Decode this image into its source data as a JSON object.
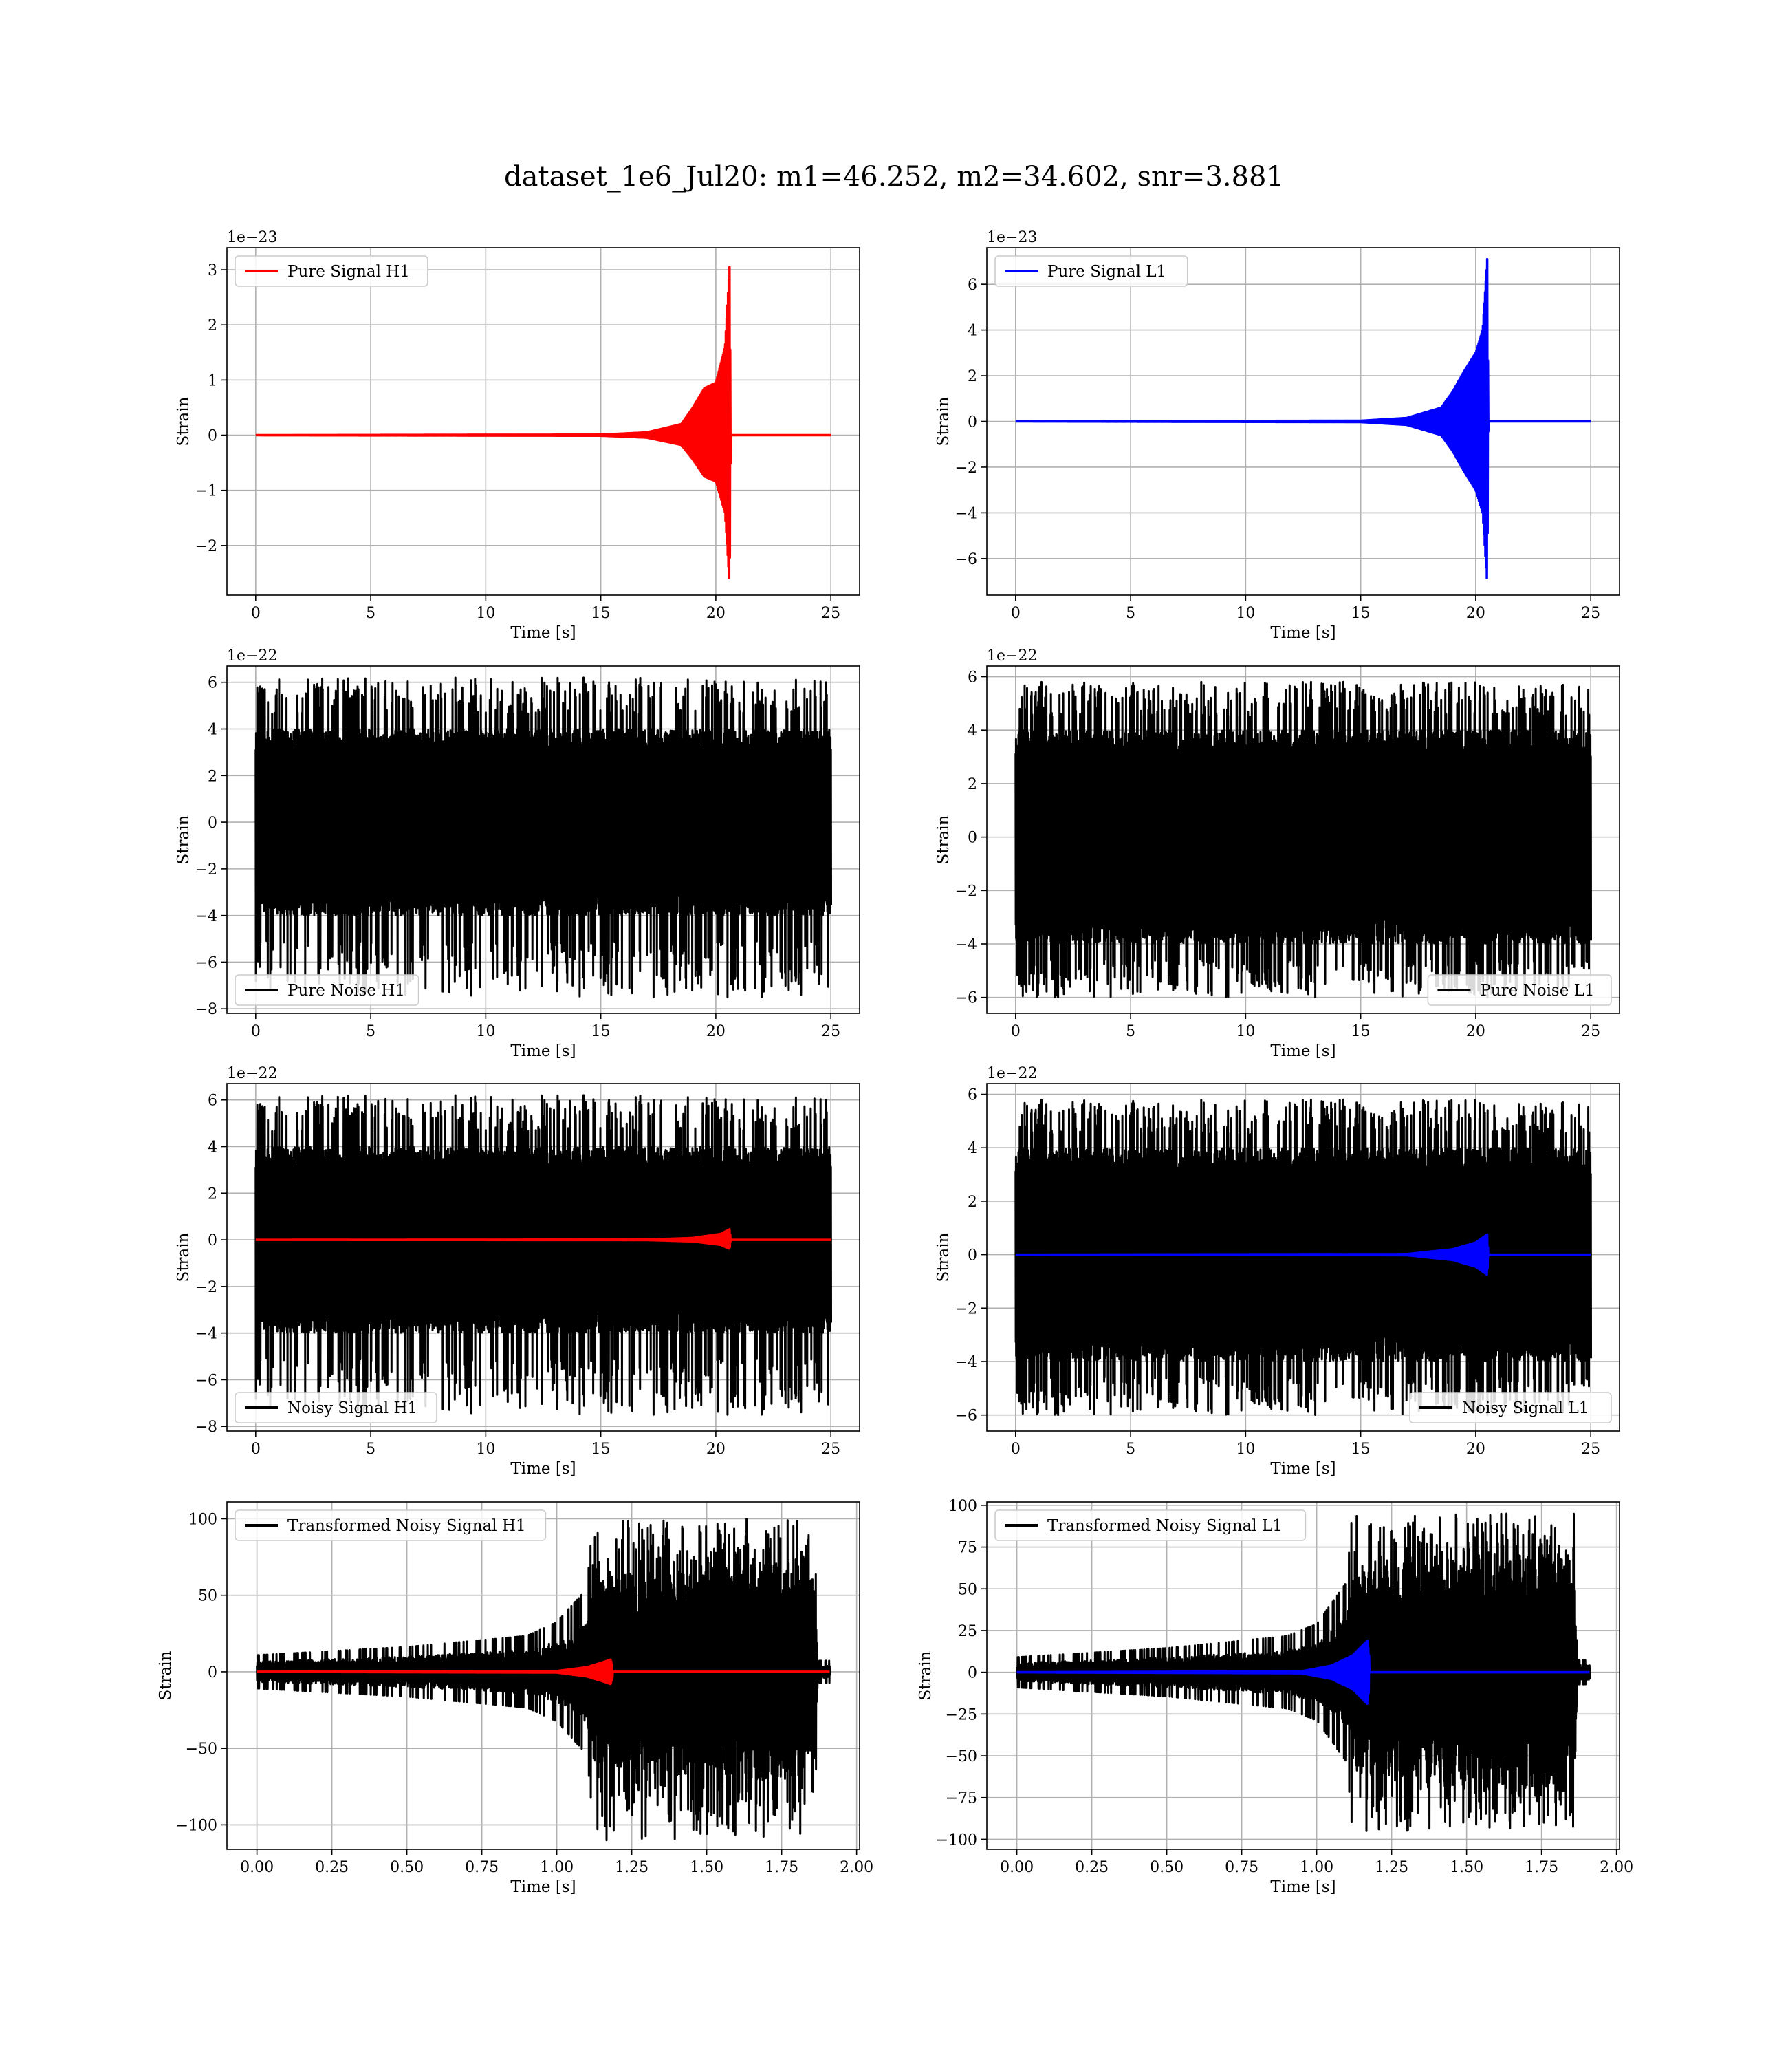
{
  "figure_title": "dataset_1e6_Jul20: m1=46.252, m2=34.602, snr=3.881",
  "colors": {
    "h1": "#ff0000",
    "l1": "#0000ff",
    "noise": "#000000",
    "grid": "#b0b0b0"
  },
  "chart_data": [
    {
      "type": "line",
      "id": "pure-signal-h1",
      "xlabel": "Time [s]",
      "ylabel": "Strain",
      "offset_text": "1e−23",
      "xlim": [
        -1.25,
        26.25
      ],
      "ylim": [
        -2.9,
        3.4
      ],
      "xticks": [
        0,
        5,
        10,
        15,
        20,
        25
      ],
      "xtick_labels": [
        "0",
        "5",
        "10",
        "15",
        "20",
        "25"
      ],
      "yticks": [
        -2,
        -1,
        0,
        1,
        2,
        3
      ],
      "ytick_labels": [
        "−2",
        "−1",
        "0",
        "1",
        "2",
        "3"
      ],
      "legend": {
        "loc": "upper left",
        "entries": [
          {
            "label": "Pure Signal H1",
            "color": "#ff0000"
          }
        ]
      },
      "series": [
        {
          "name": "Pure Signal H1",
          "kind": "chirp",
          "color": "#ff0000",
          "x_start": 0,
          "x_end": 25,
          "t_merge": 20.6,
          "envelope": [
            [
              0,
              0
            ],
            [
              15,
              0.01
            ],
            [
              17,
              0.05
            ],
            [
              18.5,
              0.2
            ],
            [
              19,
              0.5
            ],
            [
              19.5,
              0.85
            ],
            [
              20,
              0.95
            ],
            [
              20.4,
              1.6
            ],
            [
              20.6,
              3.1
            ],
            [
              20.65,
              0
            ]
          ],
          "neg_scale": 0.88
        }
      ]
    },
    {
      "type": "line",
      "id": "pure-signal-l1",
      "xlabel": "Time [s]",
      "ylabel": "Strain",
      "offset_text": "1e−23",
      "xlim": [
        -1.25,
        26.25
      ],
      "ylim": [
        -7.6,
        7.6
      ],
      "xticks": [
        0,
        5,
        10,
        15,
        20,
        25
      ],
      "xtick_labels": [
        "0",
        "5",
        "10",
        "15",
        "20",
        "25"
      ],
      "yticks": [
        -6,
        -4,
        -2,
        0,
        2,
        4,
        6
      ],
      "ytick_labels": [
        "−6",
        "−4",
        "−2",
        "0",
        "2",
        "4",
        "6"
      ],
      "legend": {
        "loc": "upper left",
        "entries": [
          {
            "label": "Pure Signal L1",
            "color": "#0000ff"
          }
        ]
      },
      "series": [
        {
          "name": "Pure Signal L1",
          "kind": "chirp",
          "color": "#0000ff",
          "x_start": 0,
          "x_end": 25,
          "t_merge": 20.5,
          "envelope": [
            [
              0,
              0
            ],
            [
              15,
              0.03
            ],
            [
              17,
              0.15
            ],
            [
              18.5,
              0.6
            ],
            [
              19,
              1.3
            ],
            [
              19.5,
              2.2
            ],
            [
              20,
              3.0
            ],
            [
              20.3,
              4.0
            ],
            [
              20.5,
              7.1
            ],
            [
              20.55,
              0
            ]
          ],
          "neg_scale": 1.0
        }
      ]
    },
    {
      "type": "line",
      "id": "pure-noise-h1",
      "xlabel": "Time [s]",
      "ylabel": "Strain",
      "offset_text": "1e−22",
      "xlim": [
        -1.25,
        26.25
      ],
      "ylim": [
        -8.2,
        6.7
      ],
      "xticks": [
        0,
        5,
        10,
        15,
        20,
        25
      ],
      "xtick_labels": [
        "0",
        "5",
        "10",
        "15",
        "20",
        "25"
      ],
      "yticks": [
        -8,
        -6,
        -4,
        -2,
        0,
        2,
        4,
        6
      ],
      "ytick_labels": [
        "−8",
        "−6",
        "−4",
        "−2",
        "0",
        "2",
        "4",
        "6"
      ],
      "legend": {
        "loc": "lower left",
        "entries": [
          {
            "label": "Pure Noise H1",
            "color": "#000000"
          }
        ]
      },
      "series": [
        {
          "name": "Pure Noise H1",
          "kind": "noise",
          "color": "#000000",
          "x_start": 0,
          "x_end": 25,
          "band": [
            -3.8,
            3.8
          ],
          "peak_max": 6.2,
          "peak_min": -7.5,
          "spikes": 260,
          "seed": 11
        }
      ]
    },
    {
      "type": "line",
      "id": "pure-noise-l1",
      "xlabel": "Time [s]",
      "ylabel": "Strain",
      "offset_text": "1e−22",
      "xlim": [
        -1.25,
        26.25
      ],
      "ylim": [
        -6.6,
        6.4
      ],
      "xticks": [
        0,
        5,
        10,
        15,
        20,
        25
      ],
      "xtick_labels": [
        "0",
        "5",
        "10",
        "15",
        "20",
        "25"
      ],
      "yticks": [
        -6,
        -4,
        -2,
        0,
        2,
        4,
        6
      ],
      "ytick_labels": [
        "−6",
        "−4",
        "−2",
        "0",
        "2",
        "4",
        "6"
      ],
      "legend": {
        "loc": "lower right",
        "entries": [
          {
            "label": "Pure Noise L1",
            "color": "#000000"
          }
        ]
      },
      "series": [
        {
          "name": "Pure Noise L1",
          "kind": "noise",
          "color": "#000000",
          "x_start": 0,
          "x_end": 25,
          "band": [
            -3.8,
            3.8
          ],
          "peak_max": 5.8,
          "peak_min": -6.0,
          "spikes": 260,
          "seed": 23
        }
      ]
    },
    {
      "type": "line",
      "id": "noisy-signal-h1",
      "xlabel": "Time [s]",
      "ylabel": "Strain",
      "offset_text": "1e−22",
      "xlim": [
        -1.25,
        26.25
      ],
      "ylim": [
        -8.2,
        6.7
      ],
      "xticks": [
        0,
        5,
        10,
        15,
        20,
        25
      ],
      "xtick_labels": [
        "0",
        "5",
        "10",
        "15",
        "20",
        "25"
      ],
      "yticks": [
        -8,
        -6,
        -4,
        -2,
        0,
        2,
        4,
        6
      ],
      "ytick_labels": [
        "−8",
        "−6",
        "−4",
        "−2",
        "0",
        "2",
        "4",
        "6"
      ],
      "legend": {
        "loc": "lower left",
        "entries": [
          {
            "label": "Noisy Signal H1",
            "color": "#000000"
          }
        ]
      },
      "series": [
        {
          "name": "Noisy Signal H1",
          "kind": "noise",
          "color": "#000000",
          "x_start": 0,
          "x_end": 25,
          "band": [
            -3.8,
            3.8
          ],
          "peak_max": 6.2,
          "peak_min": -7.5,
          "spikes": 260,
          "seed": 11
        },
        {
          "name": "Pure Signal H1",
          "kind": "chirp",
          "color": "#ff0000",
          "x_start": 0,
          "x_end": 25,
          "t_merge": 20.6,
          "envelope": [
            [
              0,
              0
            ],
            [
              17,
              0.01
            ],
            [
              19,
              0.08
            ],
            [
              20.2,
              0.25
            ],
            [
              20.6,
              0.45
            ],
            [
              20.65,
              0
            ]
          ],
          "neg_scale": 0.85
        }
      ]
    },
    {
      "type": "line",
      "id": "noisy-signal-l1",
      "xlabel": "Time [s]",
      "ylabel": "Strain",
      "offset_text": "1e−22",
      "xlim": [
        -1.25,
        26.25
      ],
      "ylim": [
        -6.6,
        6.4
      ],
      "xticks": [
        0,
        5,
        10,
        15,
        20,
        25
      ],
      "xtick_labels": [
        "0",
        "5",
        "10",
        "15",
        "20",
        "25"
      ],
      "yticks": [
        -6,
        -4,
        -2,
        0,
        2,
        4,
        6
      ],
      "ytick_labels": [
        "−6",
        "−4",
        "−2",
        "0",
        "2",
        "4",
        "6"
      ],
      "legend": {
        "loc": "lower right",
        "entries": [
          {
            "label": "Noisy Signal L1",
            "color": "#000000"
          }
        ]
      },
      "series": [
        {
          "name": "Noisy Signal L1",
          "kind": "noise",
          "color": "#000000",
          "x_start": 0,
          "x_end": 25,
          "band": [
            -3.8,
            3.8
          ],
          "peak_max": 5.8,
          "peak_min": -6.0,
          "spikes": 260,
          "seed": 23
        },
        {
          "name": "Pure Signal L1",
          "kind": "chirp",
          "color": "#0000ff",
          "x_start": 0,
          "x_end": 25,
          "t_merge": 20.5,
          "envelope": [
            [
              0,
              0
            ],
            [
              17,
              0.02
            ],
            [
              19,
              0.2
            ],
            [
              20,
              0.45
            ],
            [
              20.5,
              0.75
            ],
            [
              20.55,
              0
            ]
          ],
          "neg_scale": 1.0
        }
      ]
    },
    {
      "type": "line",
      "id": "transformed-noisy-signal-h1",
      "xlabel": "Time [s]",
      "ylabel": "Strain",
      "offset_text": "",
      "xlim": [
        -0.1,
        2.01
      ],
      "ylim": [
        -116,
        111
      ],
      "xticks": [
        0.0,
        0.25,
        0.5,
        0.75,
        1.0,
        1.25,
        1.5,
        1.75,
        2.0
      ],
      "xtick_labels": [
        "0.00",
        "0.25",
        "0.50",
        "0.75",
        "1.00",
        "1.25",
        "1.50",
        "1.75",
        "2.00"
      ],
      "yticks": [
        -100,
        -50,
        0,
        50,
        100
      ],
      "ytick_labels": [
        "−100",
        "−50",
        "0",
        "50",
        "100"
      ],
      "legend": {
        "loc": "upper left",
        "entries": [
          {
            "label": "Transformed Noisy Signal H1",
            "color": "#000000"
          }
        ]
      },
      "series": [
        {
          "name": "Transformed Noisy Signal H1",
          "kind": "tnoise",
          "color": "#000000",
          "x_start": 0,
          "x_end": 1.91,
          "env": [
            [
              0,
              6
            ],
            [
              0.5,
              9
            ],
            [
              0.9,
              13
            ],
            [
              1.0,
              18
            ],
            [
              1.1,
              30
            ],
            [
              1.12,
              55
            ],
            [
              1.3,
              60
            ],
            [
              1.6,
              65
            ],
            [
              1.8,
              65
            ],
            [
              1.86,
              55
            ],
            [
              1.87,
              4
            ],
            [
              1.91,
              4
            ]
          ],
          "peak_max": 100,
          "peak_min": -110,
          "spikes": 220,
          "seed": 5
        },
        {
          "name": "Pure Signal H1",
          "kind": "chirp",
          "color": "#ff0000",
          "x_start": 0,
          "x_end": 1.91,
          "t_merge": 1.18,
          "envelope": [
            [
              0,
              0
            ],
            [
              1.0,
              0.5
            ],
            [
              1.1,
              3
            ],
            [
              1.15,
              6
            ],
            [
              1.18,
              8
            ],
            [
              1.19,
              0
            ]
          ],
          "neg_scale": 1.0
        }
      ]
    },
    {
      "type": "line",
      "id": "transformed-noisy-signal-l1",
      "xlabel": "Time [s]",
      "ylabel": "Strain",
      "offset_text": "",
      "xlim": [
        -0.1,
        2.01
      ],
      "ylim": [
        -106,
        102
      ],
      "xticks": [
        0.0,
        0.25,
        0.5,
        0.75,
        1.0,
        1.25,
        1.5,
        1.75,
        2.0
      ],
      "xtick_labels": [
        "0.00",
        "0.25",
        "0.50",
        "0.75",
        "1.00",
        "1.25",
        "1.50",
        "1.75",
        "2.00"
      ],
      "yticks": [
        -100,
        -75,
        -50,
        -25,
        0,
        25,
        50,
        75,
        100
      ],
      "ytick_labels": [
        "−100",
        "−75",
        "−50",
        "−25",
        "0",
        "25",
        "50",
        "75",
        "100"
      ],
      "legend": {
        "loc": "upper left",
        "entries": [
          {
            "label": "Transformed Noisy Signal L1",
            "color": "#000000"
          }
        ]
      },
      "series": [
        {
          "name": "Transformed Noisy Signal L1",
          "kind": "tnoise",
          "color": "#000000",
          "x_start": 0,
          "x_end": 1.91,
          "env": [
            [
              0,
              5
            ],
            [
              0.5,
              8
            ],
            [
              0.9,
              12
            ],
            [
              1.0,
              16
            ],
            [
              1.1,
              30
            ],
            [
              1.12,
              55
            ],
            [
              1.3,
              60
            ],
            [
              1.6,
              65
            ],
            [
              1.8,
              65
            ],
            [
              1.86,
              55
            ],
            [
              1.87,
              4
            ],
            [
              1.91,
              4
            ]
          ],
          "peak_max": 95,
          "peak_min": -95,
          "spikes": 220,
          "seed": 9
        },
        {
          "name": "Pure Signal L1",
          "kind": "chirp",
          "color": "#0000ff",
          "x_start": 0,
          "x_end": 1.91,
          "t_merge": 1.17,
          "envelope": [
            [
              0,
              0
            ],
            [
              0.95,
              0.6
            ],
            [
              1.05,
              4
            ],
            [
              1.12,
              10
            ],
            [
              1.17,
              19
            ],
            [
              1.18,
              0
            ]
          ],
          "neg_scale": 1.0
        }
      ]
    }
  ]
}
